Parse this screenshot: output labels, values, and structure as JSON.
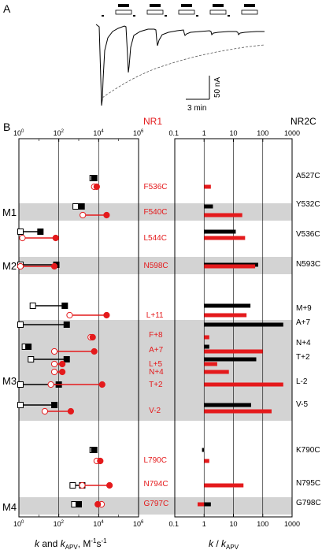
{
  "panelA": {
    "label": "A",
    "scalebar": {
      "vertical": "50 nA",
      "horizontal": "3 min"
    },
    "application_protocol_count": 5
  },
  "panelB": {
    "label": "B",
    "top_label_nr1": "NR1",
    "top_label_nr2c": "NR2C",
    "colors": {
      "red": "#e41a1c",
      "black": "#000000",
      "shade": "#d3d3d3"
    },
    "left_axis": {
      "xlabel_pre": "k",
      "xlabel_mid": " and ",
      "xlabel_k": "k",
      "xlabel_sub": "APV",
      "xlabel_unit": ", M",
      "xlabel_sup1": "-1",
      "xlabel_s": "s",
      "xlabel_sup2": "-1",
      "scale": "log",
      "ticks": [
        {
          "b": "10",
          "e": "0"
        },
        {
          "b": "10",
          "e": "2"
        },
        {
          "b": "10",
          "e": "4"
        },
        {
          "b": "10",
          "e": "6"
        }
      ]
    },
    "right_axis": {
      "xlabel_k": "k",
      "xlabel_sep": " / ",
      "xlabel_k2": "k",
      "xlabel_sub": "APV",
      "scale": "log",
      "ticks": [
        "0.1",
        "1",
        "10",
        "100",
        "1000"
      ]
    },
    "domains": [
      {
        "name": "M1"
      },
      {
        "name": "M2"
      },
      {
        "name": "M3"
      },
      {
        "name": "M4"
      }
    ]
  },
  "chart_data": {
    "type": "scatter",
    "note_symbols": "open circle = NR1 k_APV, filled circle = NR1 k; open square = NR2C k_APV, filled square = NR2C k; crossed symbols = no detectable k_APV",
    "rows": [
      {
        "nr1": "F536C",
        "nr2c": "A527C",
        "nr1_kapv": 6000,
        "nr1_k": 8000,
        "nr2c_kapv": 5000,
        "nr2c_k": 6000,
        "nr1_ratio": 1.7,
        "nr2c_ratio": 1.0
      },
      {
        "nr1": "F540C",
        "nr2c": "Y532C",
        "nr1_kapv": 1600,
        "nr1_k": 25000,
        "nr2c_kapv": 700,
        "nr2c_k": 1400,
        "nr1_ratio": 20,
        "nr2c_ratio": 2.0
      },
      {
        "nr1": "L544C",
        "nr2c": "V536C",
        "nr1_kapv": 1.5,
        "nr1_k": 70,
        "nr2c_kapv": 1.2,
        "nr2c_k": 12,
        "nr1_ratio": 25,
        "nr2c_ratio": 12
      },
      {
        "nr1": "N598C",
        "nr2c": "N593C",
        "nr1_kapv": 1.2,
        "nr1_k": 60,
        "nr2c_kapv": 1.2,
        "nr2c_k": 75,
        "nr1_ratio": 55,
        "nr2c_ratio": 70
      },
      {
        "nr1": "L+11",
        "nr2c": "M+9",
        "nr1_kapv": 350,
        "nr1_k": 25000,
        "nr2c_kapv": 5,
        "nr2c_k": 200,
        "nr1_ratio": 28,
        "nr2c_ratio": 38
      },
      {
        "nr1": "F+8",
        "nr2c": "A+7",
        "nr1_kapv": 4000,
        "nr1_k": 5000,
        "nr2c_kapv": 1.2,
        "nr2c_k": 250,
        "nr1_ratio": 1.5,
        "nr2c_ratio": 500
      },
      {
        "nr1": "A+7",
        "nr2c": "N+4",
        "nr1_kapv": 60,
        "nr1_k": 6000,
        "nr2c_kapv": 2,
        "nr2c_k": 3,
        "nr1_ratio": 100,
        "nr2c_ratio": 1.5
      },
      {
        "nr1": "L+5",
        "nr2c": "T+2",
        "nr1_kapv": 60,
        "nr1_k": 150,
        "nr2c_kapv": 4,
        "nr2c_k": 250,
        "nr1_ratio": 2.8,
        "nr2c_ratio": 60
      },
      {
        "nr1": "N+4",
        "nr2c": "",
        "nr1_kapv": 60,
        "nr1_k": 150,
        "nr2c_kapv": null,
        "nr2c_k": null,
        "nr1_ratio": 7,
        "nr2c_ratio": null
      },
      {
        "nr1": "T+2",
        "nr2c": "L-2",
        "nr1_kapv": 40,
        "nr1_k": 15000,
        "nr2c_kapv": 1.2,
        "nr2c_k": 100,
        "nr1_ratio": 500,
        "nr2c_ratio": 100
      },
      {
        "nr1": "V-2",
        "nr2c": "V-5",
        "nr1_kapv": 20,
        "nr1_k": 400,
        "nr2c_kapv": 1.2,
        "nr2c_k": 60,
        "nr1_ratio": 200,
        "nr2c_ratio": 40
      },
      {
        "nr1": "L790C",
        "nr2c": "K790C",
        "nr1_kapv": 8000,
        "nr1_k": 12000,
        "nr2c_kapv": 5000,
        "nr2c_k": 6000,
        "nr1_ratio": 1.5,
        "nr2c_ratio": 0.85
      },
      {
        "nr1": "N794C",
        "nr2c": "N795C",
        "nr1_kapv": 1500,
        "nr1_k": 35000,
        "nr2c_kapv": 500,
        "nr2c_k": 1500,
        "nr1_ratio": 22,
        "nr2c_ratio": 3.5
      },
      {
        "nr1": "G797C",
        "nr2c": "G798C",
        "nr1_kapv": 14000,
        "nr1_k": 9000,
        "nr2c_kapv": 600,
        "nr2c_k": 1000,
        "nr1_ratio": 0.6,
        "nr2c_ratio": 1.7
      }
    ]
  }
}
